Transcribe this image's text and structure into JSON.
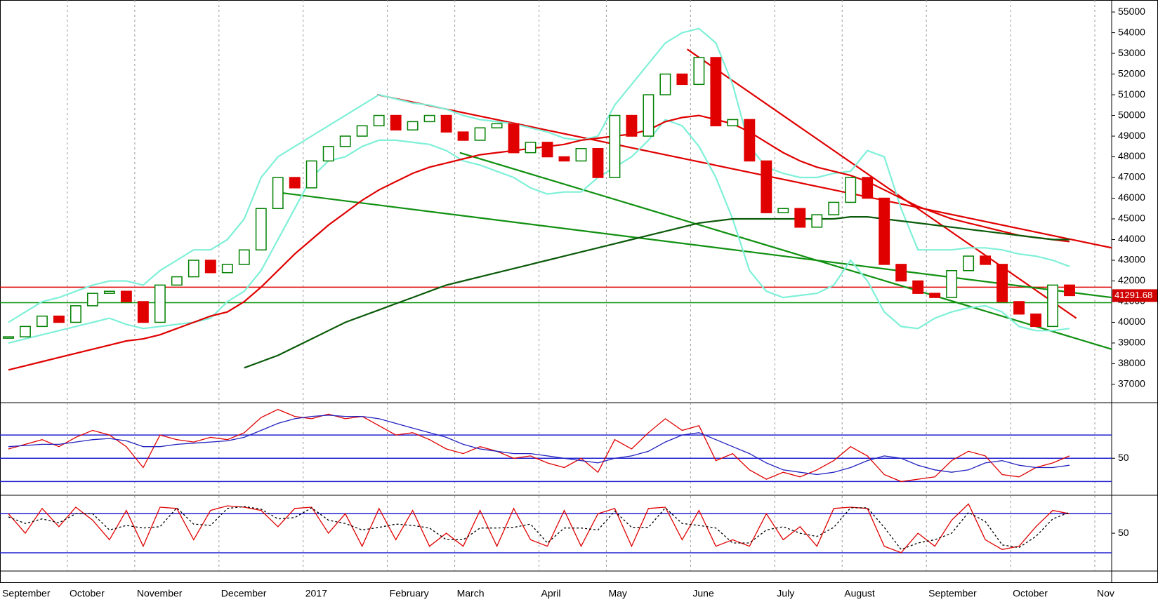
{
  "chart_data": [
    {
      "type": "line",
      "categories": [
        "September",
        null,
        null,
        null,
        "October",
        null,
        null,
        null,
        "November",
        null,
        null,
        null,
        null,
        "December",
        null,
        null,
        null,
        null,
        "2017",
        null,
        null,
        null,
        null,
        "February",
        null,
        null,
        null,
        "March",
        null,
        null,
        null,
        null,
        "April",
        null,
        null,
        null,
        "May",
        null,
        null,
        null,
        null,
        "June",
        null,
        null,
        null,
        null,
        "July",
        null,
        null,
        null,
        "August",
        null,
        null,
        null,
        null,
        "September",
        null,
        null,
        null,
        null,
        "October",
        null,
        null,
        null,
        null,
        "Nov"
      ],
      "ylim": [
        36150,
        55580
      ],
      "yticks": [
        37000,
        38000,
        39000,
        40000,
        41000,
        42000,
        43000,
        44000,
        45000,
        46000,
        47000,
        48000,
        49000,
        50000,
        51000,
        52000,
        53000,
        54000,
        55000
      ],
      "series": [
        {
          "style": "candle",
          "up_color": "#008000",
          "down_color": "#e00000",
          "values": [
            39300,
            39800,
            40300,
            40000,
            40800,
            41400,
            41500,
            41000,
            40000,
            41800,
            42200,
            43000,
            42400,
            42800,
            43500,
            45500,
            47000,
            46500,
            47800,
            48500,
            49000,
            49500,
            50000,
            49300,
            49700,
            50000,
            49200,
            48800,
            49400,
            49600,
            48200,
            48700,
            48000,
            47800,
            48400,
            47000,
            50000,
            49000,
            51000,
            52000,
            51500,
            52800,
            49500,
            49800,
            47800,
            45300,
            45500,
            44600,
            45200,
            45800,
            47000,
            46000,
            42800,
            42000,
            41400,
            41200,
            42500,
            43200,
            42800,
            41000,
            40400,
            39800,
            41800,
            41291.68,
            null,
            null
          ]
        },
        {
          "style": "line",
          "color": "#7ff0d8",
          "values": [
            40000,
            40500,
            41000,
            41200,
            41500,
            41800,
            42000,
            42000,
            41800,
            42500,
            43000,
            43500,
            43500,
            44000,
            45000,
            47000,
            48000,
            48500,
            49000,
            49500,
            50000,
            50500,
            51000,
            50800,
            50600,
            50500,
            50300,
            50000,
            49800,
            49700,
            49600,
            49400,
            49200,
            48900,
            48800,
            49000,
            50500,
            51500,
            52500,
            53500,
            54000,
            54200,
            53500,
            51500,
            48500,
            47500,
            47200,
            47000,
            47000,
            47200,
            47300,
            48300,
            48000,
            45500,
            43500,
            43500,
            43500,
            43600,
            43600,
            43500,
            43300,
            43200,
            43000,
            42700,
            null,
            null
          ]
        },
        {
          "style": "line",
          "color": "#7ff0d8",
          "values": [
            39000,
            39200,
            39400,
            39600,
            39800,
            40000,
            40200,
            39900,
            39700,
            39800,
            39900,
            40000,
            40200,
            41000,
            41500,
            42500,
            44000,
            45500,
            47000,
            47800,
            48000,
            48500,
            48800,
            48800,
            48700,
            48600,
            48300,
            47800,
            47600,
            47300,
            47000,
            46500,
            46200,
            46300,
            46300,
            47000,
            47500,
            48000,
            48800,
            49800,
            49500,
            48500,
            47000,
            45000,
            42500,
            41500,
            41200,
            41300,
            41400,
            41800,
            43000,
            42000,
            40500,
            39800,
            39700,
            40200,
            40500,
            40700,
            40800,
            40500,
            39800,
            39600,
            39600,
            39700,
            null,
            null
          ]
        },
        {
          "style": "line",
          "color": "#e00000",
          "values": [
            37700,
            37900,
            38100,
            38300,
            38500,
            38700,
            38900,
            39100,
            39200,
            39400,
            39700,
            40000,
            40300,
            40500,
            41000,
            41700,
            42500,
            43300,
            44000,
            44700,
            45300,
            45900,
            46400,
            46800,
            47200,
            47500,
            47700,
            47900,
            48100,
            48200,
            48300,
            48400,
            48500,
            48600,
            48800,
            48900,
            49000,
            49100,
            49300,
            49700,
            49900,
            50000,
            49800,
            49600,
            49200,
            48700,
            48200,
            47800,
            47500,
            47300,
            47100,
            46800,
            46400,
            46000,
            45600,
            45300,
            45000,
            44800,
            44600,
            44400,
            44200,
            44100,
            44000,
            43900,
            null,
            null
          ]
        },
        {
          "style": "line",
          "color": "#0a5a0a",
          "values": [
            null,
            null,
            null,
            null,
            null,
            null,
            null,
            null,
            null,
            null,
            null,
            null,
            null,
            null,
            37800,
            38100,
            38400,
            38800,
            39200,
            39600,
            40000,
            40300,
            40600,
            40900,
            41200,
            41500,
            41800,
            42000,
            42200,
            42400,
            42600,
            42800,
            43000,
            43200,
            43400,
            43600,
            43800,
            44000,
            44200,
            44400,
            44600,
            44800,
            44900,
            45000,
            45000,
            45000,
            45000,
            45000,
            45000,
            45000,
            45100,
            45100,
            45000,
            44900,
            44800,
            44700,
            44600,
            44500,
            44400,
            44300,
            44200,
            44100,
            44000,
            44000,
            null,
            null
          ]
        }
      ],
      "hlines": [
        {
          "value": 41700,
          "color": "#e00000"
        },
        {
          "value": 40950,
          "color": "#009000"
        }
      ],
      "trendlines": [
        {
          "color": "#e00000",
          "points": [
            [
              22.4,
              51000
            ],
            [
              66,
              43600
            ]
          ]
        },
        {
          "color": "#e00000",
          "points": [
            [
              40.8,
              53200
            ],
            [
              63.9,
              40200
            ]
          ]
        },
        {
          "color": "#109010",
          "points": [
            [
              16.3,
              46300
            ],
            [
              66,
              41200
            ]
          ]
        },
        {
          "color": "#109010",
          "points": [
            [
              27.3,
              48200
            ],
            [
              66,
              38700
            ]
          ]
        }
      ]
    },
    {
      "type": "line",
      "ylim": [
        20,
        96
      ],
      "yticks": [
        50
      ],
      "hlines": [
        {
          "value": 70,
          "color": "#2020d0"
        },
        {
          "value": 50,
          "color": "#2020d0"
        },
        {
          "value": 30,
          "color": "#2020d0"
        }
      ],
      "series": [
        {
          "style": "line",
          "color": "#e00000",
          "values": [
            58,
            62,
            66,
            60,
            68,
            74,
            70,
            60,
            42,
            70,
            66,
            64,
            68,
            66,
            72,
            85,
            92,
            86,
            84,
            88,
            84,
            86,
            78,
            70,
            72,
            66,
            58,
            54,
            60,
            56,
            50,
            52,
            46,
            42,
            50,
            38,
            66,
            58,
            72,
            84,
            74,
            78,
            48,
            54,
            40,
            32,
            38,
            34,
            40,
            48,
            60,
            52,
            36,
            30,
            32,
            34,
            48,
            56,
            52,
            36,
            34,
            42,
            46,
            52,
            null,
            null
          ]
        },
        {
          "style": "line",
          "color": "#2020c0",
          "values": [
            60,
            61,
            62,
            62,
            64,
            66,
            67,
            65,
            60,
            60,
            62,
            63,
            64,
            65,
            68,
            74,
            80,
            84,
            86,
            87,
            86,
            86,
            84,
            80,
            76,
            72,
            68,
            62,
            58,
            56,
            54,
            54,
            52,
            50,
            48,
            46,
            50,
            52,
            56,
            64,
            70,
            72,
            66,
            60,
            54,
            46,
            40,
            38,
            36,
            38,
            42,
            48,
            52,
            50,
            44,
            40,
            38,
            40,
            46,
            48,
            44,
            42,
            42,
            44,
            null,
            null
          ]
        }
      ]
    },
    {
      "type": "line",
      "ylim": [
        -7,
        104
      ],
      "yticks": [
        50
      ],
      "hlines": [
        {
          "value": 80,
          "color": "#2020d0"
        },
        {
          "value": 20,
          "color": "#2020d0"
        }
      ],
      "series": [
        {
          "style": "line",
          "color": "#e00000",
          "values": [
            80,
            50,
            88,
            60,
            90,
            70,
            40,
            85,
            30,
            90,
            88,
            40,
            85,
            92,
            90,
            85,
            60,
            88,
            90,
            50,
            80,
            30,
            88,
            40,
            85,
            30,
            50,
            30,
            85,
            30,
            88,
            40,
            30,
            85,
            30,
            80,
            88,
            30,
            88,
            90,
            40,
            85,
            30,
            40,
            30,
            80,
            40,
            60,
            30,
            88,
            90,
            88,
            30,
            20,
            50,
            30,
            70,
            95,
            40,
            25,
            30,
            60,
            85,
            80,
            null,
            null
          ]
        },
        {
          "style": "dashed",
          "color": "#000000",
          "values": [
            75,
            65,
            72,
            66,
            80,
            80,
            55,
            62,
            58,
            60,
            89,
            64,
            62,
            88,
            91,
            87,
            72,
            74,
            89,
            70,
            65,
            55,
            59,
            64,
            62,
            58,
            40,
            40,
            58,
            58,
            59,
            64,
            35,
            58,
            58,
            55,
            84,
            59,
            59,
            89,
            65,
            62,
            58,
            35,
            35,
            55,
            60,
            50,
            45,
            59,
            89,
            89,
            59,
            25,
            35,
            40,
            50,
            82,
            68,
            32,
            28,
            45,
            72,
            82,
            null,
            null
          ]
        }
      ]
    }
  ]
}
